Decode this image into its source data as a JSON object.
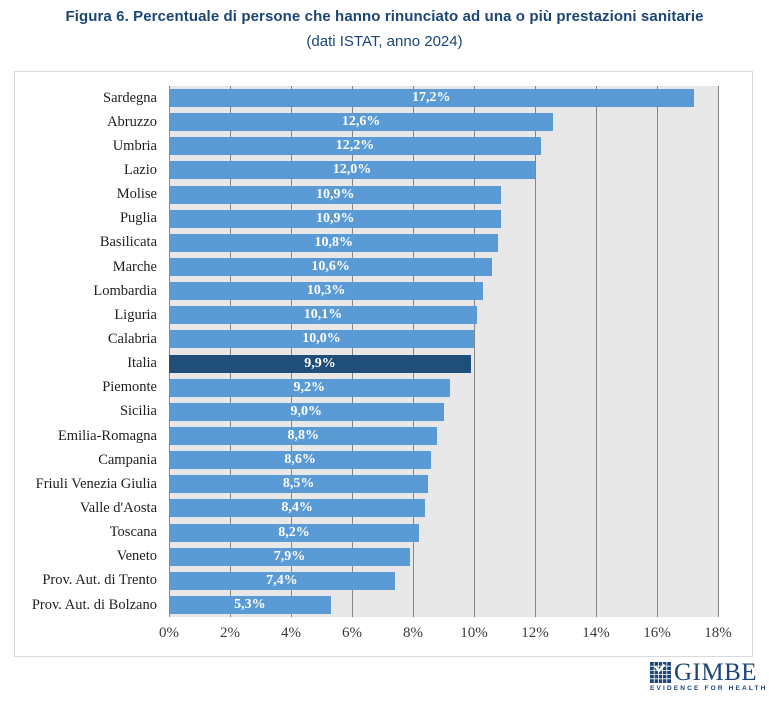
{
  "title": "Figura 6. Percentuale di persone che hanno rinunciato ad una o più prestazioni sanitarie",
  "subtitle": "(dati ISTAT, anno 2024)",
  "chart_data": {
    "type": "bar",
    "orientation": "horizontal",
    "title": "Figura 6. Percentuale di persone che hanno rinunciato ad una o più prestazioni sanitarie",
    "subtitle": "(dati ISTAT, anno 2024)",
    "xlabel": "",
    "ylabel": "",
    "xlim": [
      0,
      18
    ],
    "x_ticks": [
      "0%",
      "2%",
      "4%",
      "6%",
      "8%",
      "10%",
      "12%",
      "14%",
      "16%",
      "18%"
    ],
    "grid": "vertical",
    "legend": "none",
    "categories": [
      "Sardegna",
      "Abruzzo",
      "Umbria",
      "Lazio",
      "Molise",
      "Puglia",
      "Basilicata",
      "Marche",
      "Lombardia",
      "Liguria",
      "Calabria",
      "Italia",
      "Piemonte",
      "Sicilia",
      "Emilia-Romagna",
      "Campania",
      "Friuli Venezia Giulia",
      "Valle d'Aosta",
      "Toscana",
      "Veneto",
      "Prov. Aut. di Trento",
      "Prov. Aut. di Bolzano"
    ],
    "values": [
      17.2,
      12.6,
      12.2,
      12.0,
      10.9,
      10.9,
      10.8,
      10.6,
      10.3,
      10.1,
      10.0,
      9.9,
      9.2,
      9.0,
      8.8,
      8.6,
      8.5,
      8.4,
      8.2,
      7.9,
      7.4,
      5.3
    ],
    "value_labels": [
      "17,2%",
      "12,6%",
      "12,2%",
      "12,0%",
      "10,9%",
      "10,9%",
      "10,8%",
      "10,6%",
      "10,3%",
      "10,1%",
      "10,0%",
      "9,9%",
      "9,2%",
      "9,0%",
      "8,8%",
      "8,6%",
      "8,5%",
      "8,4%",
      "8,2%",
      "7,9%",
      "7,4%",
      "5,3%"
    ],
    "highlight_category": "Italia",
    "colors": {
      "bar": "#5B9BD5",
      "highlight": "#1F4E79",
      "plot_background": "#E8E8E8",
      "gridline": "#868686",
      "title": "#1B4677",
      "box_border": "#D9D9D9"
    }
  },
  "logo": {
    "name": "GIMBE",
    "tagline": "EVIDENCE FOR HEALTH"
  }
}
